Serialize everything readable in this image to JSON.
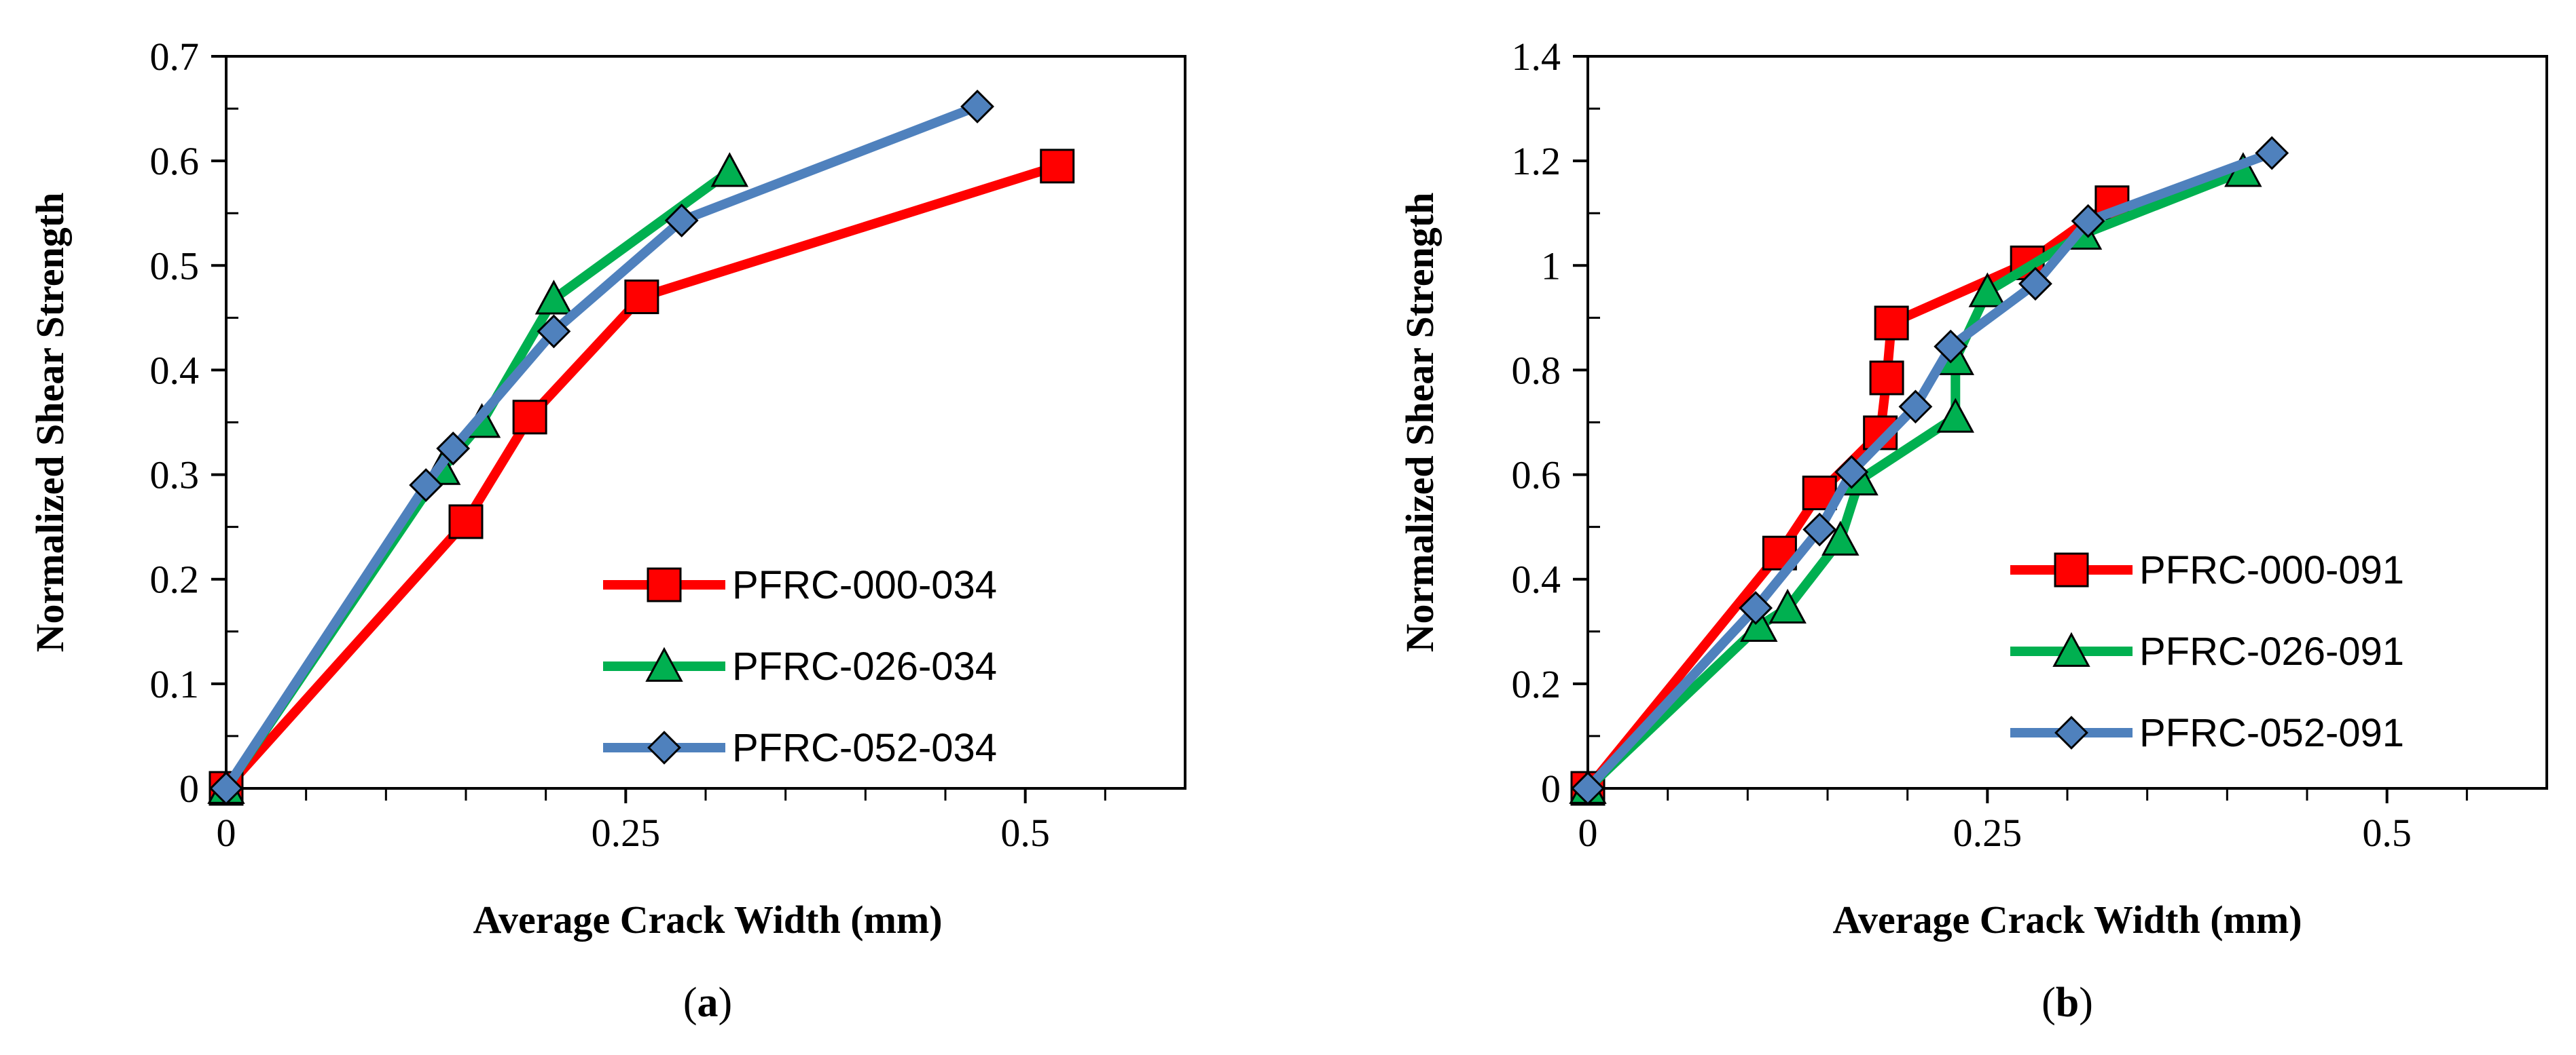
{
  "chart_data": [
    {
      "type": "line",
      "panel_label": {
        "open": "(",
        "letter": "a",
        "close": ")"
      },
      "xlabel": "Average Crack Width  (mm)",
      "ylabel": "Normalized Shear Strength",
      "xlim": [
        0,
        0.6
      ],
      "ylim": [
        0,
        0.7
      ],
      "x_ticks": [
        0,
        0.25,
        0.5
      ],
      "x_tick_labels": [
        "0",
        "0.25",
        "0.5"
      ],
      "x_minor_ticks": [
        0.05,
        0.1,
        0.15,
        0.2,
        0.3,
        0.35,
        0.4,
        0.45,
        0.55
      ],
      "y_ticks": [
        0,
        0.1,
        0.2,
        0.3,
        0.4,
        0.5,
        0.6,
        0.7
      ],
      "y_tick_labels": [
        "0",
        "0.1",
        "0.2",
        "0.3",
        "0.4",
        "0.5",
        "0.6",
        "0.7"
      ],
      "legend_position": "bottom-right",
      "series": [
        {
          "name": "PFRC-000-034",
          "color": "#ff0000",
          "marker": "square",
          "x": [
            0,
            0.15,
            0.19,
            0.26,
            0.52
          ],
          "y": [
            0,
            0.255,
            0.355,
            0.47,
            0.595
          ]
        },
        {
          "name": "PFRC-026-034",
          "color": "#00b050",
          "marker": "triangle",
          "x": [
            0,
            0.135,
            0.16,
            0.205,
            0.315
          ],
          "y": [
            0,
            0.305,
            0.35,
            0.468,
            0.59
          ]
        },
        {
          "name": "PFRC-052-034",
          "color": "#4f81bd",
          "marker": "diamond",
          "x": [
            0,
            0.125,
            0.142,
            0.205,
            0.285,
            0.47
          ],
          "y": [
            0,
            0.29,
            0.325,
            0.437,
            0.543,
            0.652
          ]
        }
      ]
    },
    {
      "type": "line",
      "panel_label": {
        "open": "(",
        "letter": "b",
        "close": ")"
      },
      "xlabel": "Average Crack Width  (mm)",
      "ylabel": "Normalized Shear Strength",
      "xlim": [
        0,
        0.6
      ],
      "ylim": [
        0,
        1.4
      ],
      "x_ticks": [
        0,
        0.25,
        0.5
      ],
      "x_tick_labels": [
        "0",
        "0.25",
        "0.5"
      ],
      "x_minor_ticks": [
        0.05,
        0.1,
        0.15,
        0.2,
        0.3,
        0.35,
        0.4,
        0.45,
        0.55
      ],
      "y_ticks": [
        0,
        0.2,
        0.4,
        0.6,
        0.8,
        1.0,
        1.2,
        1.4
      ],
      "y_tick_labels": [
        "0",
        "0.2",
        "0.4",
        "0.6",
        "0.8",
        "1",
        "1.2",
        "1.4"
      ],
      "legend_position": "bottom-right",
      "series": [
        {
          "name": "PFRC-000-091",
          "color": "#ff0000",
          "marker": "square",
          "x": [
            0,
            0.12,
            0.145,
            0.183,
            0.187,
            0.19,
            0.275,
            0.328
          ],
          "y": [
            0,
            0.45,
            0.565,
            0.68,
            0.785,
            0.89,
            1.005,
            1.12
          ]
        },
        {
          "name": "PFRC-026-091",
          "color": "#00b050",
          "marker": "triangle",
          "x": [
            0,
            0.107,
            0.125,
            0.158,
            0.17,
            0.23,
            0.23,
            0.25,
            0.31,
            0.41
          ],
          "y": [
            0,
            0.31,
            0.345,
            0.475,
            0.59,
            0.71,
            0.82,
            0.95,
            1.06,
            1.18
          ]
        },
        {
          "name": "PFRC-052-091",
          "color": "#4f81bd",
          "marker": "diamond",
          "x": [
            0,
            0.105,
            0.145,
            0.165,
            0.205,
            0.227,
            0.28,
            0.313,
            0.428
          ],
          "y": [
            0,
            0.345,
            0.495,
            0.605,
            0.73,
            0.845,
            0.965,
            1.085,
            1.215
          ]
        }
      ]
    }
  ]
}
